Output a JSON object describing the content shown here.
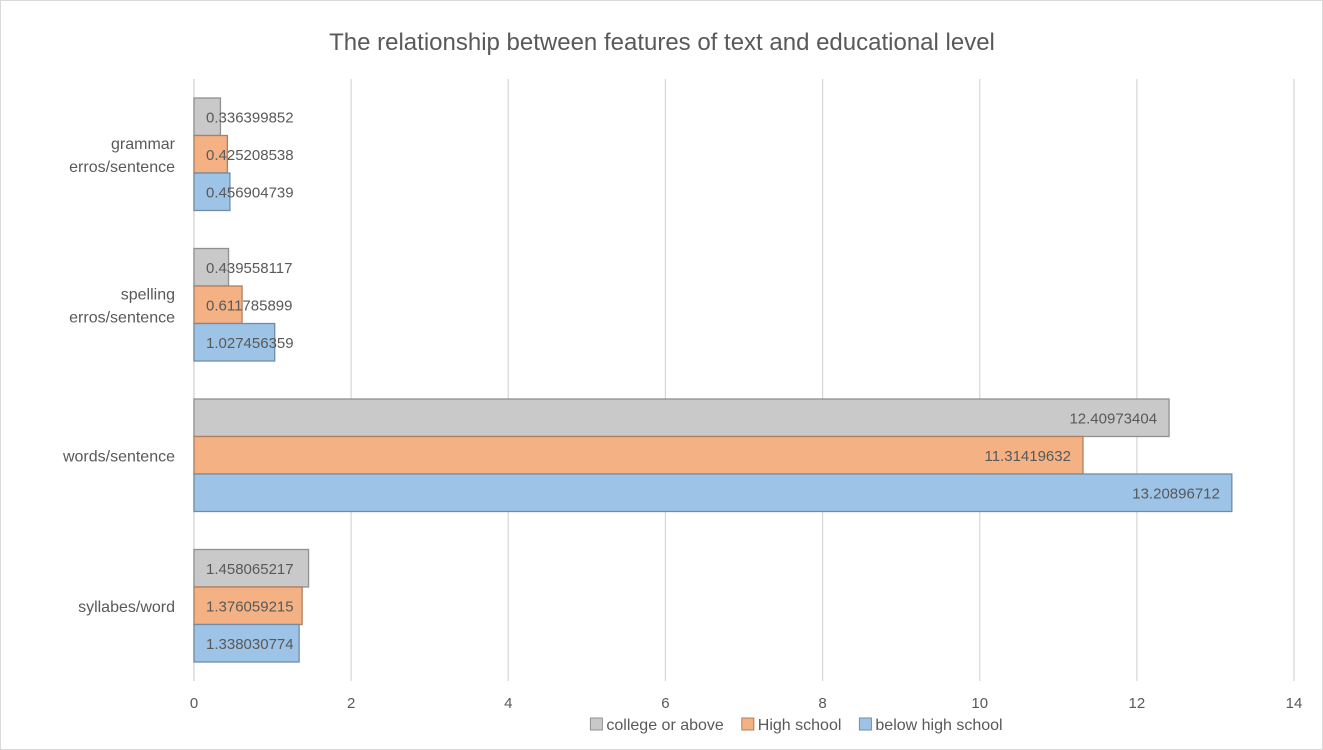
{
  "chart_data": {
    "type": "bar",
    "orientation": "horizontal",
    "title": "The relationship between features of text and educational level",
    "categories": [
      "grammar erros/sentence",
      "spelling erros/sentence",
      "words/sentence",
      "syllabes/word"
    ],
    "series": [
      {
        "name": "college or above",
        "color": "#c9c9c9",
        "values": [
          0.336399852,
          0.439558117,
          12.40973404,
          1.458065217
        ],
        "labels": [
          "0.336399852",
          "0.439558117",
          "12.40973404",
          "1.458065217"
        ]
      },
      {
        "name": "High school",
        "color": "#f4b183",
        "values": [
          0.425208538,
          0.611785899,
          11.31419632,
          1.376059215
        ],
        "labels": [
          "0.425208538",
          "0.611785899",
          "11.31419632",
          "1.376059215"
        ]
      },
      {
        "name": "below high school",
        "color": "#9dc3e6",
        "values": [
          0.456904739,
          1.027456359,
          13.20896712,
          1.338030774
        ],
        "labels": [
          "0.456904739",
          "1.027456359",
          "13.20896712",
          "1.338030774"
        ]
      }
    ],
    "xlim": [
      0,
      14
    ],
    "xticks": [
      0,
      2,
      4,
      6,
      8,
      10,
      12,
      14
    ],
    "xtick_labels": [
      "0",
      "2",
      "4",
      "6",
      "8",
      "10",
      "12",
      "14"
    ],
    "xlabel": "",
    "ylabel": "",
    "grid": "vertical",
    "legend_position": "bottom"
  }
}
